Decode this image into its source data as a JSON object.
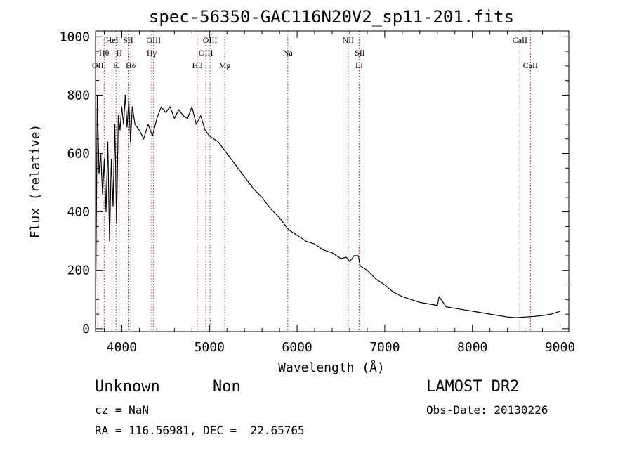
{
  "chart_data": {
    "type": "line",
    "title": "spec-56350-GAC116N20V2_sp11-201.fits",
    "xlabel": "Wavelength (Å)",
    "ylabel": "Flux (relative)",
    "xlim": [
      3700,
      9100
    ],
    "ylim": [
      -10,
      1020
    ],
    "xticks": [
      4000,
      5000,
      6000,
      7000,
      8000,
      9000
    ],
    "yticks": [
      0,
      200,
      400,
      600,
      800,
      1000
    ],
    "xtick_labels": [
      "4000",
      "5000",
      "6000",
      "7000",
      "8000",
      "9000"
    ],
    "ytick_labels": [
      "0",
      "200",
      "400",
      "600",
      "800",
      "1000"
    ],
    "grid": false,
    "line_color": "#000000",
    "marker_color": "#8b1a1a",
    "series": [
      {
        "x": [
          3700,
          3720,
          3740,
          3760,
          3780,
          3800,
          3820,
          3840,
          3860,
          3880,
          3900,
          3920,
          3940,
          3960,
          3980,
          4000,
          4020,
          4040,
          4060,
          4080,
          4100,
          4120,
          4150,
          4200,
          4250,
          4300,
          4350,
          4400,
          4450,
          4500,
          4550,
          4600,
          4650,
          4700,
          4750,
          4800,
          4850,
          4900,
          4950,
          5000,
          5050,
          5100,
          5150,
          5200,
          5300,
          5400,
          5500,
          5600,
          5700,
          5800,
          5900,
          6000,
          6100,
          6200,
          6300,
          6400,
          6500,
          6560,
          6600,
          6650,
          6700,
          6720,
          6800,
          6900,
          7000,
          7100,
          7200,
          7300,
          7400,
          7500,
          7600,
          7620,
          7700,
          7800,
          7900,
          8000,
          8100,
          8200,
          8300,
          8400,
          8500,
          8600,
          8700,
          8800,
          8900,
          9000
        ],
        "y": [
          10,
          800,
          530,
          600,
          460,
          580,
          400,
          640,
          300,
          580,
          420,
          700,
          360,
          730,
          680,
          760,
          700,
          800,
          690,
          780,
          640,
          760,
          700,
          680,
          650,
          700,
          660,
          720,
          760,
          740,
          760,
          720,
          750,
          730,
          720,
          760,
          700,
          730,
          680,
          660,
          650,
          640,
          620,
          600,
          560,
          520,
          480,
          450,
          410,
          380,
          340,
          320,
          300,
          290,
          270,
          260,
          240,
          245,
          230,
          250,
          250,
          215,
          200,
          170,
          150,
          125,
          110,
          100,
          90,
          85,
          80,
          110,
          75,
          70,
          65,
          60,
          55,
          50,
          45,
          40,
          38,
          40,
          42,
          45,
          50,
          60
        ]
      }
    ],
    "line_markers": [
      {
        "x": 3727,
        "label": "OII",
        "row": 3
      },
      {
        "x": 3798,
        "label": "Hθ",
        "row": 2
      },
      {
        "x": 3889,
        "label": "HeI",
        "row": 1
      },
      {
        "x": 3934,
        "label": "K",
        "row": 3
      },
      {
        "x": 3970,
        "label": "H",
        "row": 2
      },
      {
        "x": 4072,
        "label": "SII",
        "row": 1
      },
      {
        "x": 4102,
        "label": "Hδ",
        "row": 3
      },
      {
        "x": 4341,
        "label": "Hγ",
        "row": 2
      },
      {
        "x": 4363,
        "label": "OIII",
        "row": 1
      },
      {
        "x": 4861,
        "label": "Hβ",
        "row": 3
      },
      {
        "x": 4959,
        "label": "OIII",
        "row": 2
      },
      {
        "x": 5007,
        "label": "OIII",
        "row": 1
      },
      {
        "x": 5175,
        "label": "Mg",
        "row": 3
      },
      {
        "x": 5894,
        "label": "Na",
        "row": 2
      },
      {
        "x": 6583,
        "label": "NII",
        "row": 1
      },
      {
        "x": 6707,
        "label": "Li",
        "row": 3
      },
      {
        "x": 6716,
        "label": "SII",
        "row": 2
      },
      {
        "x": 8542,
        "label": "CaII",
        "row": 1
      },
      {
        "x": 8662,
        "label": "CaII",
        "row": 3
      }
    ]
  },
  "info": {
    "object_class": "Unknown",
    "subclass": "Non",
    "survey": "LAMOST DR2",
    "redshift": "cz = NaN",
    "obs_date": "Obs-Date: 20130226",
    "coords": "RA = 116.56981, DEC =  22.65765"
  }
}
